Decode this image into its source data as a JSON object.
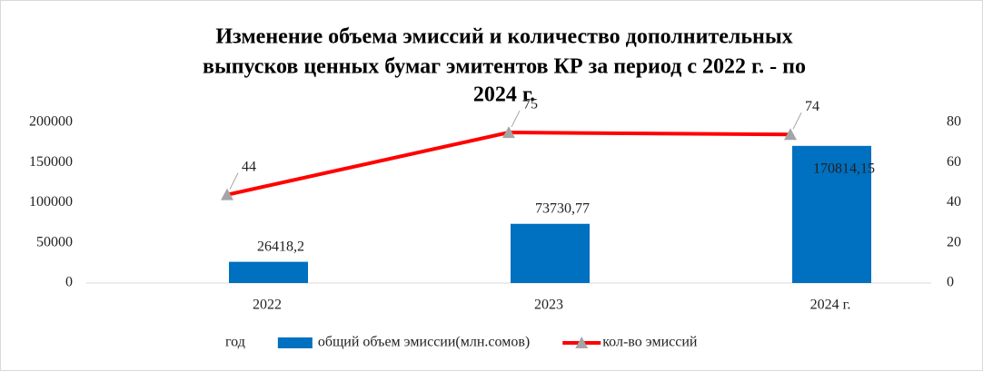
{
  "chart_data": {
    "type": "bar-line",
    "title": [
      "Изменение объема эмиссий и количество дополнительных",
      "выпусков ценных бумаг эмитентов КР за период с 2022 г. - по",
      "2024 г."
    ],
    "categories": [
      "2022",
      "2023",
      "2024 г."
    ],
    "series": [
      {
        "name": "год",
        "values": [
          null,
          null,
          null
        ]
      },
      {
        "name": "общий объем эмиссии(млн.сомов)",
        "type": "bar",
        "color": "#0070c0",
        "values": [
          26418.2,
          73730.77,
          170814.15
        ],
        "value_labels": [
          "26418,2",
          "73730,77",
          "170814,15"
        ]
      },
      {
        "name": "кол-во эмиссий",
        "type": "line",
        "axis": "y2",
        "color": "#ff0000",
        "marker_color": "#a5a5a5",
        "values": [
          44,
          75,
          74
        ]
      }
    ],
    "ylim": [
      0,
      200000
    ],
    "yticks": [
      0,
      50000,
      100000,
      150000,
      200000
    ],
    "y2lim": [
      0,
      80
    ],
    "y2ticks": [
      0,
      20,
      40,
      60,
      80
    ],
    "grid": false,
    "legend": "bottom"
  }
}
